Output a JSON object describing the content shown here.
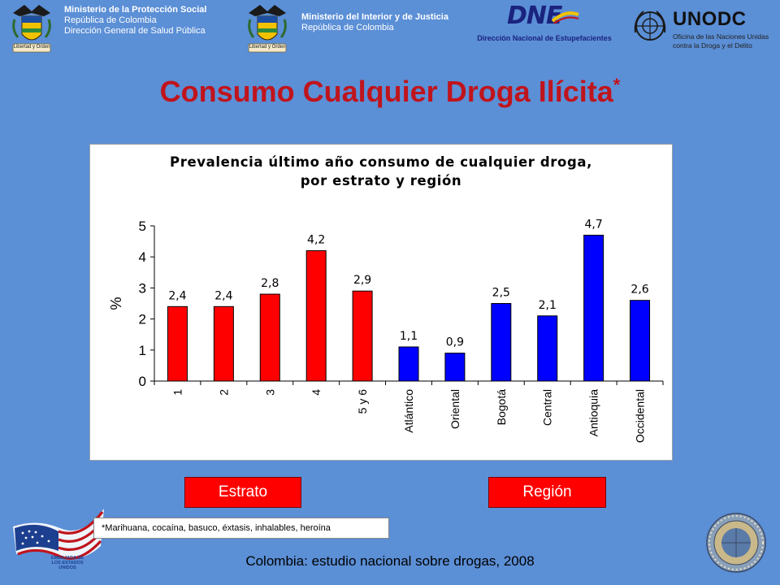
{
  "header": {
    "ministry_social": {
      "line1": "Ministerio de la Protección Social",
      "line2": "República de Colombia",
      "line3": "Dirección General de Salud Pública"
    },
    "ministry_interior": {
      "line1": "Ministerio del Interior y de Justicia",
      "line2": "República de Colombia"
    },
    "dne": {
      "logo_text": "DNE",
      "subtitle": "Dirección Nacional de Estupefacientes"
    },
    "unodc": {
      "logo_text": "UNODC",
      "line1": "Oficina de las Naciones Unidas",
      "line2": "contra la Droga y el Delito"
    },
    "coat_of_arms_motto": "Libertad y Orden"
  },
  "title": {
    "text": "Consumo Cualquier Droga Ilícita",
    "marker": "*"
  },
  "chart_data": {
    "type": "bar",
    "title_line1": "Prevalencia último año consumo de cualquier droga,",
    "title_line2": "por estrato y región",
    "ylabel": "%",
    "xlabel": "",
    "ylim": [
      0,
      5
    ],
    "yticks": [
      "0",
      "1",
      "2",
      "3",
      "4",
      "5"
    ],
    "grid": false,
    "categories": [
      "1",
      "2",
      "3",
      "4",
      "5 y 6",
      "Atlántico",
      "Oriental",
      "Bogotá",
      "Central",
      "Antioquia",
      "Occidental"
    ],
    "values": [
      2.4,
      2.4,
      2.8,
      4.2,
      2.9,
      1.1,
      0.9,
      2.5,
      2.1,
      4.7,
      2.6
    ],
    "data_labels": [
      "2,4",
      "2,4",
      "2,8",
      "4,2",
      "2,9",
      "1,1",
      "0,9",
      "2,5",
      "2,1",
      "4,7",
      "2,6"
    ],
    "groups": [
      "Estrato",
      "Estrato",
      "Estrato",
      "Estrato",
      "Estrato",
      "Región",
      "Región",
      "Región",
      "Región",
      "Región",
      "Región"
    ],
    "colors": {
      "Estrato": "#ff0000",
      "Región": "#0000ff"
    }
  },
  "group_labels": {
    "estrato": "Estrato",
    "region": "Región"
  },
  "footnote": "*Marihuana,  cocaína,  basuco,  éxtasis,  inhalables,  heroína",
  "footer": "Colombia: estudio nacional sobre drogas, 2008",
  "embassy_logo_text": "EMBAJADA DE LOS ESTADOS UNIDOS",
  "colors": {
    "background": "#5b8fd6",
    "title": "#c0141c",
    "estrato_bar": "#ff0000",
    "region_bar": "#0000ff"
  }
}
